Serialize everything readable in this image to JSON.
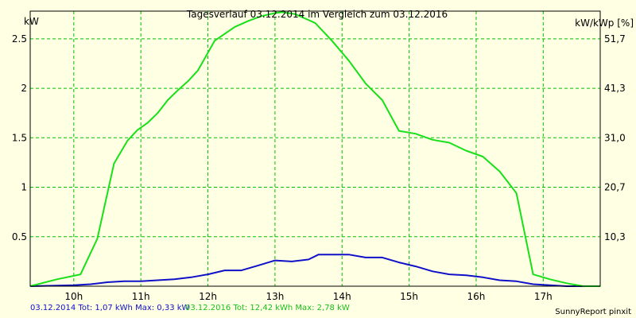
{
  "chart_data": {
    "type": "line",
    "title": "Tagesverlauf 03.12.2014 im Vergleich zum 03.12.2016",
    "ylabel_left": "kW",
    "ylabel_right": "kW/kWp [%]",
    "xlim": [
      9.35,
      17.85
    ],
    "ylim": [
      0,
      2.78
    ],
    "grid": true,
    "x_ticks": [
      {
        "value": 10,
        "label": "10h"
      },
      {
        "value": 11,
        "label": "11h"
      },
      {
        "value": 12,
        "label": "12h"
      },
      {
        "value": 13,
        "label": "13h"
      },
      {
        "value": 14,
        "label": "14h"
      },
      {
        "value": 15,
        "label": "15h"
      },
      {
        "value": 16,
        "label": "16h"
      },
      {
        "value": 17,
        "label": "17h"
      }
    ],
    "y_ticks_left": [
      {
        "value": 0.5,
        "label": "0.5"
      },
      {
        "value": 1,
        "label": "1"
      },
      {
        "value": 1.5,
        "label": "1.5"
      },
      {
        "value": 2,
        "label": "2"
      },
      {
        "value": 2.5,
        "label": "2.5"
      }
    ],
    "y_ticks_right": [
      {
        "value": 0.5,
        "label": "10,3"
      },
      {
        "value": 1,
        "label": "20,7"
      },
      {
        "value": 1.5,
        "label": "31,0"
      },
      {
        "value": 2,
        "label": "41,3"
      },
      {
        "value": 2.5,
        "label": "51,7"
      }
    ],
    "series": [
      {
        "name": "03.12.2014",
        "color": "#1010c8",
        "points": [
          [
            9.35,
            0.0
          ],
          [
            10.0,
            0.01
          ],
          [
            10.25,
            0.02
          ],
          [
            10.5,
            0.04
          ],
          [
            10.75,
            0.05
          ],
          [
            11.0,
            0.05
          ],
          [
            11.25,
            0.06
          ],
          [
            11.5,
            0.07
          ],
          [
            11.75,
            0.09
          ],
          [
            12.0,
            0.12
          ],
          [
            12.25,
            0.16
          ],
          [
            12.5,
            0.16
          ],
          [
            12.75,
            0.21
          ],
          [
            13.0,
            0.26
          ],
          [
            13.25,
            0.25
          ],
          [
            13.5,
            0.27
          ],
          [
            13.65,
            0.32
          ],
          [
            13.85,
            0.32
          ],
          [
            14.1,
            0.32
          ],
          [
            14.35,
            0.29
          ],
          [
            14.6,
            0.29
          ],
          [
            14.85,
            0.24
          ],
          [
            15.1,
            0.2
          ],
          [
            15.35,
            0.15
          ],
          [
            15.6,
            0.12
          ],
          [
            15.85,
            0.11
          ],
          [
            16.1,
            0.09
          ],
          [
            16.35,
            0.06
          ],
          [
            16.6,
            0.05
          ],
          [
            16.85,
            0.02
          ],
          [
            17.1,
            0.01
          ],
          [
            17.35,
            0.0
          ],
          [
            17.85,
            0.0
          ]
        ]
      },
      {
        "name": "03.12.2016",
        "color": "#18e018",
        "points": [
          [
            9.35,
            0.0
          ],
          [
            9.75,
            0.07
          ],
          [
            10.1,
            0.12
          ],
          [
            10.35,
            0.48
          ],
          [
            10.6,
            1.24
          ],
          [
            10.8,
            1.47
          ],
          [
            10.95,
            1.58
          ],
          [
            11.1,
            1.65
          ],
          [
            11.25,
            1.75
          ],
          [
            11.4,
            1.88
          ],
          [
            11.55,
            1.98
          ],
          [
            11.7,
            2.07
          ],
          [
            11.85,
            2.18
          ],
          [
            12.1,
            2.48
          ],
          [
            12.25,
            2.55
          ],
          [
            12.4,
            2.62
          ],
          [
            12.6,
            2.68
          ],
          [
            12.8,
            2.73
          ],
          [
            13.0,
            2.76
          ],
          [
            13.1,
            2.77
          ],
          [
            13.3,
            2.75
          ],
          [
            13.6,
            2.66
          ],
          [
            13.85,
            2.48
          ],
          [
            14.1,
            2.28
          ],
          [
            14.35,
            2.05
          ],
          [
            14.6,
            1.88
          ],
          [
            14.85,
            1.57
          ],
          [
            15.1,
            1.54
          ],
          [
            15.35,
            1.48
          ],
          [
            15.6,
            1.45
          ],
          [
            15.85,
            1.37
          ],
          [
            16.1,
            1.31
          ],
          [
            16.35,
            1.16
          ],
          [
            16.6,
            0.94
          ],
          [
            16.85,
            0.12
          ],
          [
            17.1,
            0.07
          ],
          [
            17.35,
            0.03
          ],
          [
            17.6,
            0.0
          ],
          [
            17.85,
            0.0
          ]
        ]
      }
    ]
  },
  "footer": {
    "series_2014_text": "03.12.2014 Tot: 1,07 kWh Max: 0,33 kW",
    "series_2016_text": "03.12.2016 Tot: 12,42 kWh Max: 2,78 kW",
    "credit": "SunnyReport pinxit"
  },
  "colors": {
    "background": "#ffffe4",
    "grid": "#00c000",
    "series_2014": "#1010c8",
    "series_2016": "#18e018"
  }
}
